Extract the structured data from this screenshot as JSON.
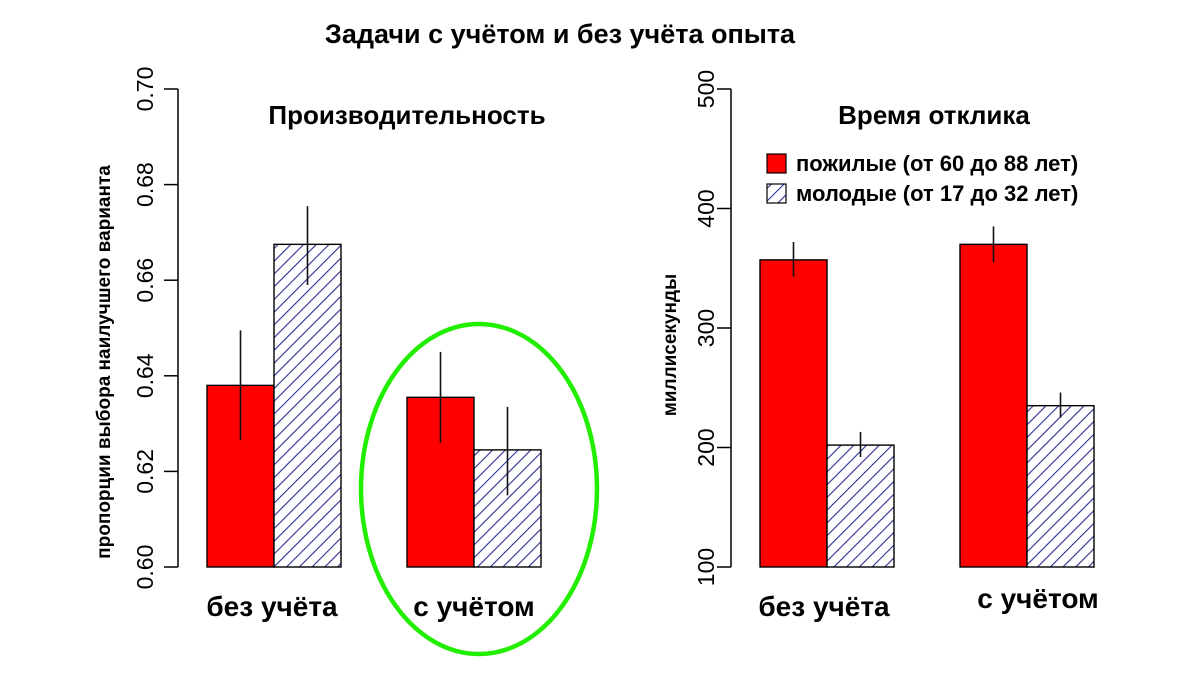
{
  "title": "Задачи с учётом и без учёта опыта",
  "colors": {
    "elderly": "#ff0000",
    "young_hatch": "#2b2f8f",
    "highlight": "#22ee00"
  },
  "legend": [
    {
      "label": "пожилые (от 60 до 88 лет)",
      "style": "solid-red"
    },
    {
      "label": "молодые (от 17 до 32 лет)",
      "style": "hatched-blue"
    }
  ],
  "chart_data": [
    {
      "type": "bar",
      "title": "Производительность",
      "ylabel": "пропорции выбора наилучшего варианта",
      "ylim": [
        0.6,
        0.7
      ],
      "yticks": [
        "0.60",
        "0.62",
        "0.64",
        "0.66",
        "0.68",
        "0.70"
      ],
      "categories": [
        "без учёта",
        "с учётом"
      ],
      "series": [
        {
          "name": "пожилые (от 60 до 88 лет)",
          "values": [
            0.638,
            0.6355
          ],
          "err_low": [
            0.6265,
            0.626
          ],
          "err_high": [
            0.6495,
            0.645
          ]
        },
        {
          "name": "молодые (от 17 до 32 лет)",
          "values": [
            0.6675,
            0.6245
          ],
          "err_low": [
            0.659,
            0.615
          ],
          "err_high": [
            0.6755,
            0.6335
          ]
        }
      ],
      "highlighted_category": "с учётом"
    },
    {
      "type": "bar",
      "title": "Время отклика",
      "ylabel": "миллисекунды",
      "ylim": [
        100,
        500
      ],
      "yticks": [
        "100",
        "200",
        "300",
        "400",
        "500"
      ],
      "categories": [
        "без учёта",
        "с учётом"
      ],
      "series": [
        {
          "name": "пожилые (от 60 до 88 лет)",
          "values": [
            357,
            370
          ],
          "err_low": [
            343,
            355
          ],
          "err_high": [
            372,
            385
          ]
        },
        {
          "name": "молодые (от 17 до 32 лет)",
          "values": [
            202,
            235
          ],
          "err_low": [
            192,
            225
          ],
          "err_high": [
            213,
            246
          ]
        }
      ]
    }
  ]
}
